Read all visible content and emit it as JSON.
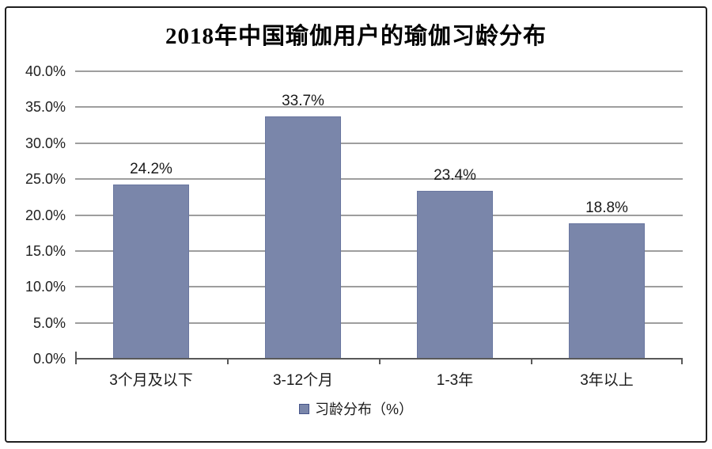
{
  "chart_data": {
    "type": "bar",
    "title": "2018年中国瑜伽用户的瑜伽习龄分布",
    "categories": [
      "3个月及以下",
      "3-12个月",
      "1-3年",
      "3年以上"
    ],
    "values": [
      24.2,
      33.7,
      23.4,
      18.8
    ],
    "value_labels": [
      "24.2%",
      "33.7%",
      "23.4%",
      "18.8%"
    ],
    "ylim": [
      0,
      40
    ],
    "ytick_step": 5,
    "ytick_labels": [
      "0.0%",
      "5.0%",
      "10.0%",
      "15.0%",
      "20.0%",
      "25.0%",
      "30.0%",
      "35.0%",
      "40.0%"
    ],
    "grid": true,
    "legend_position": "bottom",
    "legend": {
      "label": "习龄分布（%）",
      "swatch_color": "#7A86AA",
      "swatch_border": "#46548a"
    },
    "bar_color": "#7A86AA",
    "bar_border_color": "#6a77a0",
    "gridline_color": "#9e9e9e",
    "axis_color": "#595959"
  }
}
